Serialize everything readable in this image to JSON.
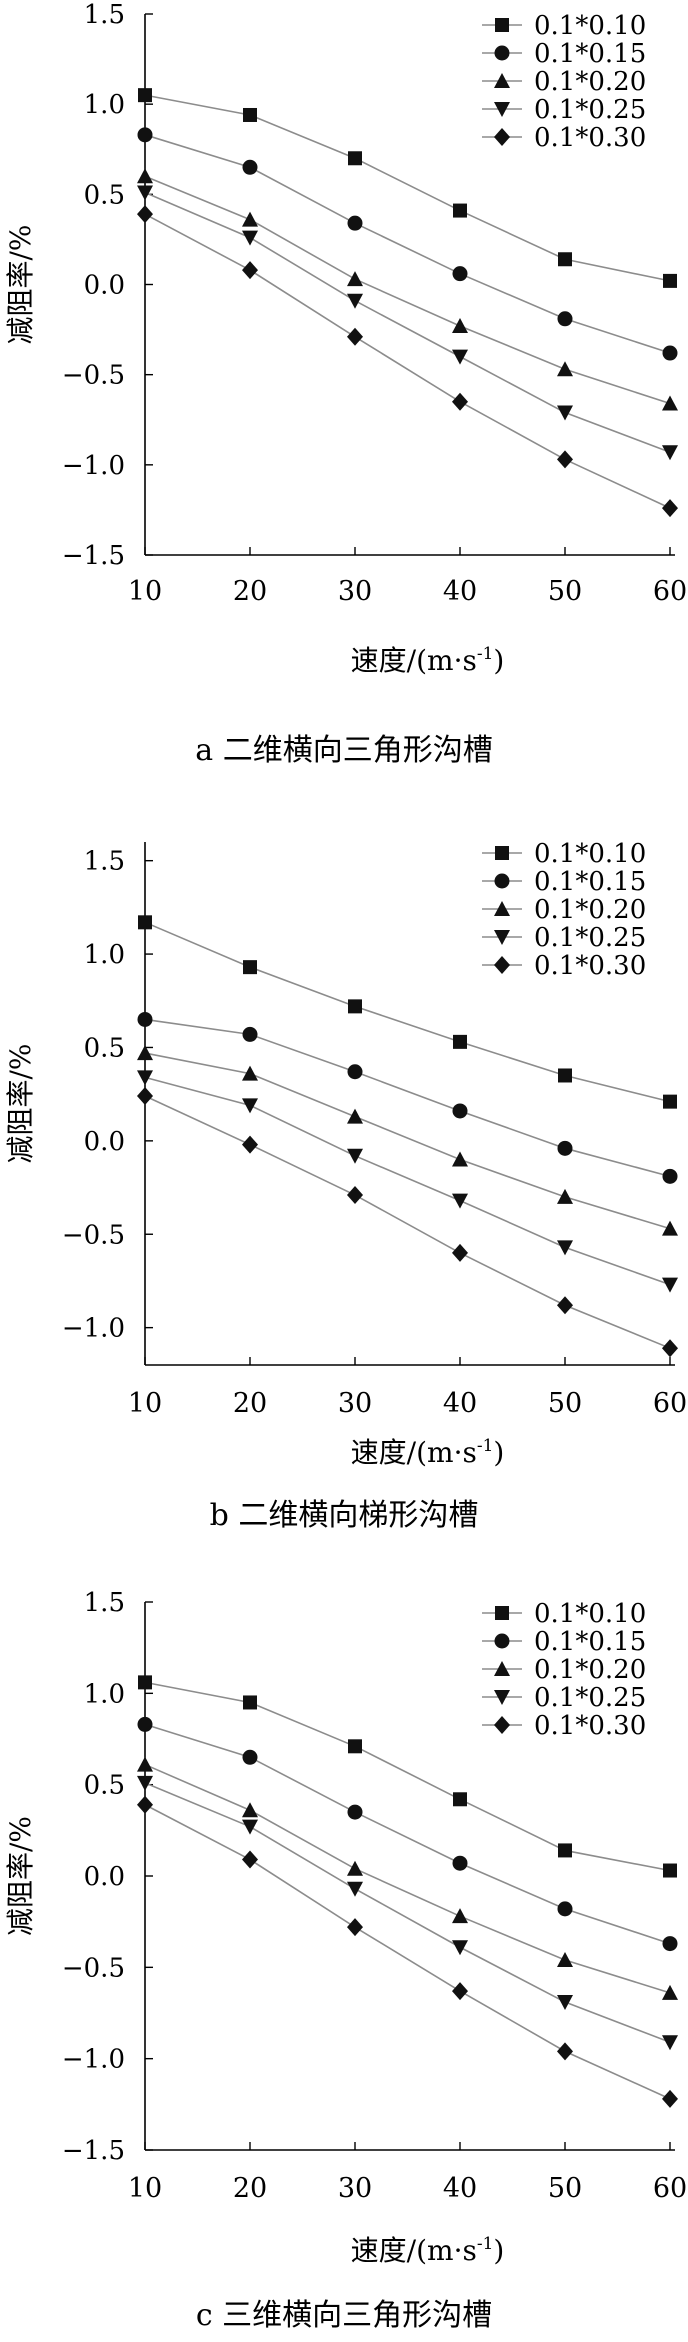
{
  "chart_data": [
    {
      "type": "line",
      "caption": "a 二维横向三角形沟槽",
      "xlabel": "速度/(m·s",
      "xlabel_sup": "-1",
      "xlabel_close": ")",
      "ylabel": "减阻率/%",
      "x": [
        10,
        20,
        30,
        40,
        50,
        60
      ],
      "xticks": [
        "10",
        "20",
        "30",
        "40",
        "50",
        "60"
      ],
      "yticks": [
        "1.5",
        "1.0",
        "0.5",
        "0.0",
        "-0.5",
        "-1.0",
        "-1.5"
      ],
      "ylim": [
        -1.5,
        1.5
      ],
      "legend_position": "top-right",
      "grid": false,
      "series": [
        {
          "name": "0.1*0.10",
          "marker": "square",
          "values": [
            1.05,
            0.94,
            0.7,
            0.41,
            0.14,
            0.02
          ]
        },
        {
          "name": "0.1*0.15",
          "marker": "circle",
          "values": [
            0.83,
            0.65,
            0.34,
            0.06,
            -0.19,
            -0.38
          ]
        },
        {
          "name": "0.1*0.20",
          "marker": "triangle",
          "values": [
            0.6,
            0.36,
            0.03,
            -0.23,
            -0.47,
            -0.66
          ]
        },
        {
          "name": "0.1*0.25",
          "marker": "triangle-down",
          "values": [
            0.51,
            0.26,
            -0.09,
            -0.4,
            -0.71,
            -0.93
          ]
        },
        {
          "name": "0.1*0.30",
          "marker": "diamond",
          "values": [
            0.39,
            0.08,
            -0.29,
            -0.65,
            -0.97,
            -1.24
          ]
        }
      ]
    },
    {
      "type": "line",
      "caption": "b 二维横向梯形沟槽",
      "xlabel": "速度/(m·s",
      "xlabel_sup": "-1",
      "xlabel_close": ")",
      "ylabel": "减阻率/%",
      "x": [
        10,
        20,
        30,
        40,
        50,
        60
      ],
      "xticks": [
        "10",
        "20",
        "30",
        "40",
        "50",
        "60"
      ],
      "yticks": [
        "1.5",
        "1.0",
        "0.5",
        "0.0",
        "-0.5",
        "-1.0"
      ],
      "ylim": [
        -1.2,
        1.6
      ],
      "legend_position": "top-right",
      "grid": false,
      "series": [
        {
          "name": "0.1*0.10",
          "marker": "square",
          "values": [
            1.17,
            0.93,
            0.72,
            0.53,
            0.35,
            0.21
          ]
        },
        {
          "name": "0.1*0.15",
          "marker": "circle",
          "values": [
            0.65,
            0.57,
            0.37,
            0.16,
            -0.04,
            -0.19
          ]
        },
        {
          "name": "0.1*0.20",
          "marker": "triangle",
          "values": [
            0.47,
            0.36,
            0.13,
            -0.1,
            -0.3,
            -0.47
          ]
        },
        {
          "name": "0.1*0.25",
          "marker": "triangle-down",
          "values": [
            0.34,
            0.19,
            -0.08,
            -0.32,
            -0.57,
            -0.77
          ]
        },
        {
          "name": "0.1*0.30",
          "marker": "diamond",
          "values": [
            0.24,
            -0.02,
            -0.29,
            -0.6,
            -0.88,
            -1.11
          ]
        }
      ]
    },
    {
      "type": "line",
      "caption": "c 三维横向三角形沟槽",
      "xlabel": "速度/(m·s",
      "xlabel_sup": "-1",
      "xlabel_close": ")",
      "ylabel": "减阻率/%",
      "x": [
        10,
        20,
        30,
        40,
        50,
        60
      ],
      "xticks": [
        "10",
        "20",
        "30",
        "40",
        "50",
        "60"
      ],
      "yticks": [
        "1.5",
        "1.0",
        "0.5",
        "0.0",
        "-0.5",
        "-1.0",
        "-1.5"
      ],
      "ylim": [
        -1.5,
        1.5
      ],
      "legend_position": "top-right",
      "grid": false,
      "series": [
        {
          "name": "0.1*0.10",
          "marker": "square",
          "values": [
            1.06,
            0.95,
            0.71,
            0.42,
            0.14,
            0.03
          ]
        },
        {
          "name": "0.1*0.15",
          "marker": "circle",
          "values": [
            0.83,
            0.65,
            0.35,
            0.07,
            -0.18,
            -0.37
          ]
        },
        {
          "name": "0.1*0.20",
          "marker": "triangle",
          "values": [
            0.61,
            0.36,
            0.04,
            -0.22,
            -0.46,
            -0.64
          ]
        },
        {
          "name": "0.1*0.25",
          "marker": "triangle-down",
          "values": [
            0.51,
            0.27,
            -0.07,
            -0.39,
            -0.69,
            -0.91
          ]
        },
        {
          "name": "0.1*0.30",
          "marker": "diamond",
          "values": [
            0.39,
            0.09,
            -0.28,
            -0.63,
            -0.96,
            -1.22
          ]
        }
      ]
    }
  ],
  "colors": {
    "axis": "#000000",
    "line": "#8c8c8c",
    "marker": "#111111"
  }
}
